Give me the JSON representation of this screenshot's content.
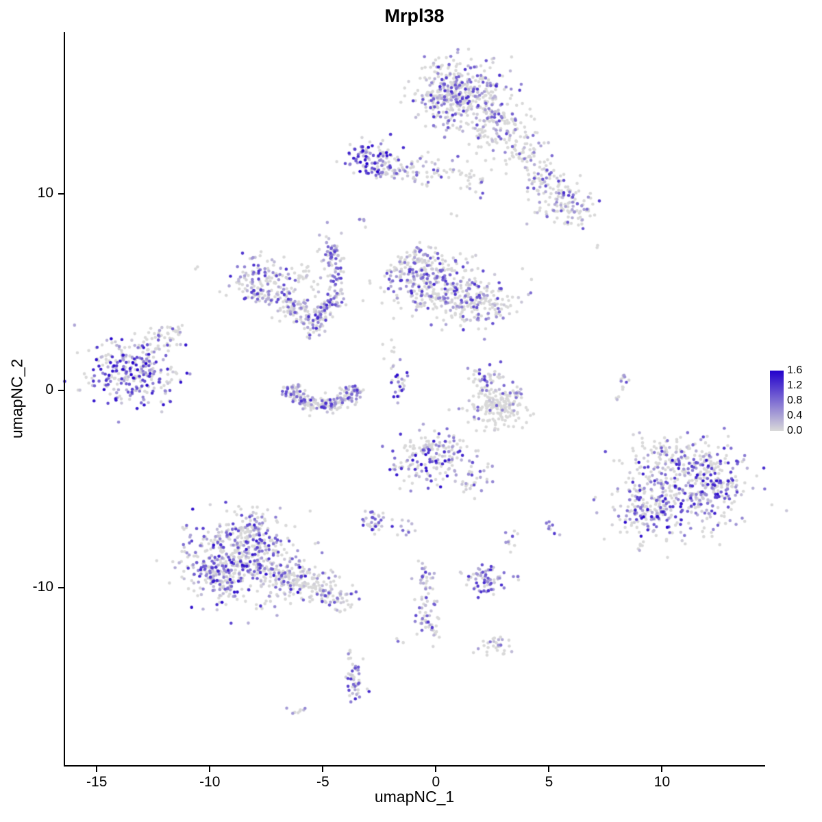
{
  "chart_data": {
    "type": "scatter",
    "title": "Mrpl38",
    "xlabel": "umapNC_1",
    "ylabel": "umapNC_2",
    "xlim": [
      -16.4,
      14.5
    ],
    "ylim": [
      -19.0,
      18.2
    ],
    "x_ticks": [
      -15,
      -10,
      -5,
      0,
      5,
      10
    ],
    "y_ticks": [
      10,
      0,
      -10
    ],
    "grid": false,
    "point_radius": 2.3,
    "legend": {
      "position": "right",
      "ticks": [
        "1.6",
        "1.2",
        "0.8",
        "0.4",
        "0.0"
      ],
      "vmin": 0.0,
      "vmax": 1.6,
      "color_low": "#D9D9D9",
      "color_high": "#2200CC"
    },
    "clusters": {
      "blob_columns": [
        "x",
        "y",
        "sd_x",
        "sd_y",
        "n_cells",
        "expressing_fraction",
        "max_expression"
      ],
      "blobs": [
        [
          1.2,
          15.1,
          1.0,
          0.8,
          360,
          0.45,
          1.3
        ],
        [
          2.6,
          13.4,
          0.9,
          0.7,
          130,
          0.3,
          1.1
        ],
        [
          0.2,
          14.6,
          0.5,
          0.6,
          60,
          0.55,
          1.3
        ],
        [
          3.9,
          12.1,
          0.5,
          0.5,
          50,
          0.35,
          1.1
        ],
        [
          4.7,
          11.0,
          0.4,
          0.5,
          40,
          0.35,
          1.1
        ],
        [
          5.4,
          9.9,
          0.6,
          0.6,
          80,
          0.5,
          1.3
        ],
        [
          6.1,
          9.2,
          0.5,
          0.4,
          50,
          0.5,
          1.2
        ],
        [
          -2.9,
          11.7,
          0.5,
          0.45,
          100,
          0.75,
          1.6
        ],
        [
          -1.9,
          11.3,
          0.5,
          0.35,
          45,
          0.55,
          1.3
        ],
        [
          -0.3,
          11.2,
          0.8,
          0.4,
          40,
          0.4,
          1.1
        ],
        [
          1.4,
          10.7,
          0.5,
          0.4,
          25,
          0.35,
          1.0
        ],
        [
          -3.1,
          8.6,
          0.15,
          0.15,
          5,
          0.5,
          0.9
        ],
        [
          -4.7,
          7.0,
          0.3,
          0.5,
          45,
          0.7,
          1.2
        ],
        [
          -4.5,
          5.8,
          0.25,
          0.5,
          35,
          0.6,
          1.2
        ],
        [
          -4.4,
          4.8,
          0.2,
          0.3,
          15,
          0.5,
          1.0
        ],
        [
          0.3,
          5.2,
          1.1,
          0.8,
          280,
          0.5,
          1.3
        ],
        [
          -1.1,
          5.9,
          0.6,
          0.55,
          90,
          0.5,
          1.3
        ],
        [
          2.1,
          4.4,
          0.8,
          0.5,
          120,
          0.45,
          1.2
        ],
        [
          -0.6,
          6.7,
          0.4,
          0.3,
          35,
          0.5,
          1.2
        ],
        [
          -7.6,
          5.4,
          0.8,
          0.6,
          150,
          0.6,
          1.3
        ],
        [
          -6.4,
          4.2,
          0.5,
          0.4,
          60,
          0.5,
          1.2
        ],
        [
          -5.4,
          3.6,
          0.4,
          0.4,
          70,
          0.6,
          1.3
        ],
        [
          -4.8,
          4.3,
          0.3,
          0.3,
          40,
          0.6,
          1.2
        ],
        [
          -6.0,
          5.8,
          0.4,
          0.25,
          20,
          0.15,
          0.8
        ],
        [
          -13.4,
          0.9,
          1.0,
          0.8,
          280,
          0.65,
          1.6
        ],
        [
          -12.1,
          2.5,
          0.5,
          0.4,
          40,
          0.3,
          1.0
        ],
        [
          -11.6,
          3.0,
          0.3,
          0.2,
          10,
          0.25,
          0.8
        ],
        [
          -1.6,
          0.4,
          0.18,
          0.55,
          25,
          0.6,
          1.6
        ],
        [
          -2.2,
          2.0,
          0.3,
          0.4,
          8,
          0.2,
          0.8
        ],
        [
          2.3,
          0.6,
          0.35,
          0.4,
          45,
          0.6,
          1.3
        ],
        [
          2.7,
          -0.9,
          0.6,
          0.5,
          170,
          0.12,
          0.9
        ],
        [
          3.5,
          -0.2,
          0.25,
          0.35,
          20,
          0.5,
          1.1
        ],
        [
          8.3,
          0.5,
          0.15,
          0.35,
          12,
          0.5,
          1.0
        ],
        [
          8.0,
          -0.3,
          0.1,
          0.1,
          3,
          0.4,
          0.8
        ],
        [
          10.6,
          -5.0,
          1.5,
          1.2,
          400,
          0.55,
          1.5
        ],
        [
          9.3,
          -6.3,
          0.7,
          0.7,
          100,
          0.7,
          1.6
        ],
        [
          10.9,
          -3.2,
          1.0,
          0.5,
          80,
          0.35,
          1.2
        ],
        [
          12.4,
          -4.6,
          0.7,
          0.8,
          70,
          0.5,
          1.4
        ],
        [
          -0.3,
          -3.6,
          0.9,
          0.7,
          150,
          0.55,
          1.5
        ],
        [
          0.1,
          -2.7,
          0.5,
          0.3,
          40,
          0.45,
          1.2
        ],
        [
          1.5,
          -4.6,
          0.3,
          0.5,
          20,
          0.4,
          1.1
        ],
        [
          2.3,
          -4.2,
          0.15,
          0.3,
          8,
          0.5,
          1.0
        ],
        [
          -2.7,
          -6.6,
          0.35,
          0.3,
          35,
          0.7,
          1.3
        ],
        [
          -1.3,
          -6.9,
          0.2,
          0.2,
          10,
          0.5,
          1.1
        ],
        [
          -8.6,
          -8.6,
          1.3,
          1.1,
          480,
          0.55,
          1.5
        ],
        [
          -8.2,
          -6.9,
          0.6,
          0.45,
          70,
          0.5,
          1.2
        ],
        [
          -9.7,
          -9.3,
          0.6,
          0.6,
          90,
          0.65,
          1.4
        ],
        [
          -6.4,
          -9.6,
          0.8,
          0.5,
          120,
          0.3,
          1.1
        ],
        [
          -4.9,
          -10.2,
          0.5,
          0.4,
          60,
          0.45,
          1.2
        ],
        [
          -4.2,
          -10.7,
          0.3,
          0.3,
          25,
          0.5,
          1.1
        ],
        [
          2.3,
          -9.6,
          0.5,
          0.35,
          70,
          0.75,
          1.3
        ],
        [
          -0.6,
          -9.6,
          0.25,
          0.4,
          25,
          0.6,
          1.2
        ],
        [
          -0.5,
          -10.8,
          0.2,
          0.5,
          25,
          0.6,
          1.2
        ],
        [
          -0.3,
          -11.9,
          0.25,
          0.4,
          30,
          0.65,
          1.4
        ],
        [
          3.4,
          -7.6,
          0.15,
          0.25,
          10,
          0.6,
          1.1
        ],
        [
          5.1,
          -7.0,
          0.2,
          0.25,
          8,
          0.6,
          1.2
        ],
        [
          2.6,
          -12.9,
          0.4,
          0.3,
          30,
          0.4,
          1.1
        ],
        [
          -3.6,
          -14.1,
          0.2,
          0.35,
          20,
          0.7,
          1.2
        ],
        [
          -3.5,
          -15.1,
          0.2,
          0.35,
          25,
          0.7,
          1.3
        ],
        [
          -3.8,
          -13.3,
          0.12,
          0.15,
          4,
          0.4,
          0.9
        ],
        [
          -6.1,
          -16.2,
          0.25,
          0.15,
          8,
          0.5,
          1.0
        ],
        [
          7.0,
          7.4,
          0.1,
          0.1,
          2,
          0,
          0
        ],
        [
          -10.6,
          6.2,
          0.12,
          0.1,
          2,
          0,
          0
        ],
        [
          -1.6,
          -12.7,
          0.1,
          0.1,
          3,
          0.3,
          0.8
        ],
        [
          0.9,
          8.9,
          0.1,
          0.1,
          2,
          0.3,
          0.8
        ],
        [
          -7.9,
          6.9,
          0.15,
          0.1,
          3,
          0.3,
          0.8
        ],
        [
          -5.9,
          6.3,
          0.2,
          0.15,
          4,
          0.2,
          0.8
        ]
      ],
      "arcs": [
        {
          "x": -5.0,
          "y": 0.6,
          "r": 1.5,
          "ry": 0.9,
          "a0": 195,
          "a1": 345,
          "w": 0.22,
          "n": 210,
          "frac": 0.55,
          "vmax": 1.3
        }
      ]
    }
  }
}
